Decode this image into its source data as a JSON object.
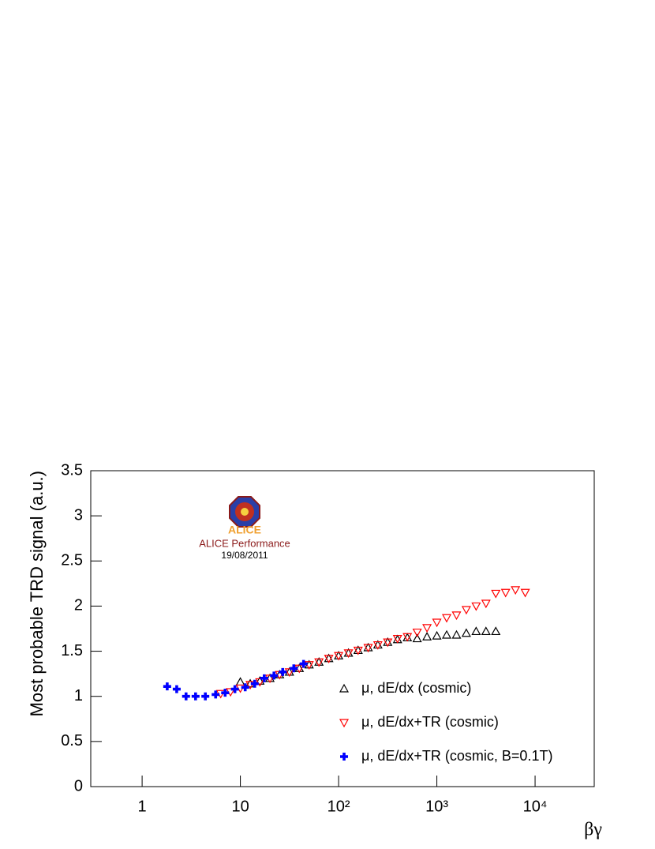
{
  "chart_data": {
    "type": "scatter",
    "x_label": "βγ",
    "y_label": "Most probable TRD signal (a.u.)",
    "xlog": true,
    "xlim": [
      0.3,
      40000
    ],
    "ylim": [
      0,
      3.5
    ],
    "xticks": [
      1,
      10,
      {
        "value": 100,
        "label": "10²"
      },
      {
        "value": 1000,
        "label": "10³"
      },
      {
        "value": 10000,
        "label": "10⁴"
      }
    ],
    "yticks": [
      0,
      0.5,
      1,
      1.5,
      2,
      2.5,
      3,
      3.5
    ],
    "legend": "bottom-right",
    "logo": {
      "name": "ALICE",
      "label": "ALICE Performance",
      "date": "19/08/2011"
    },
    "series": [
      {
        "name": "μ, dE/dx (cosmic)",
        "color": "#000000",
        "marker": "triangle-up",
        "x": [
          10,
          12.6,
          15.8,
          20,
          25.1,
          31.6,
          39.8,
          50.1,
          63.1,
          79.4,
          100,
          126,
          158,
          200,
          251,
          316,
          398,
          501,
          631,
          794,
          1000,
          1259,
          1585,
          1995,
          2512,
          3162,
          3981
        ],
        "values": [
          1.16,
          1.14,
          1.17,
          1.2,
          1.24,
          1.27,
          1.31,
          1.35,
          1.38,
          1.42,
          1.45,
          1.48,
          1.51,
          1.54,
          1.57,
          1.6,
          1.63,
          1.65,
          1.64,
          1.66,
          1.67,
          1.68,
          1.68,
          1.7,
          1.72,
          1.72,
          1.72
        ]
      },
      {
        "name": "μ, dE/dx+TR (cosmic)",
        "color": "#ff0000",
        "marker": "triangle-down",
        "x": [
          6.31,
          7.94,
          10,
          12.6,
          15.8,
          20,
          25.1,
          31.6,
          39.8,
          50.1,
          63.1,
          79.4,
          100,
          126,
          158,
          200,
          251,
          316,
          398,
          501,
          631,
          794,
          1000,
          1259,
          1585,
          1995,
          2512,
          3162,
          3981,
          5012,
          6310,
          7943
        ],
        "values": [
          1.03,
          1.05,
          1.09,
          1.13,
          1.16,
          1.2,
          1.24,
          1.27,
          1.31,
          1.35,
          1.38,
          1.42,
          1.45,
          1.48,
          1.51,
          1.54,
          1.57,
          1.6,
          1.64,
          1.66,
          1.71,
          1.76,
          1.82,
          1.87,
          1.9,
          1.96,
          2.0,
          2.03,
          2.14,
          2.15,
          2.18,
          2.15
        ]
      },
      {
        "name": "μ, dE/dx+TR (cosmic, B=0.1T)",
        "color": "#0000ff",
        "marker": "cross",
        "x": [
          1.8,
          2.25,
          2.8,
          3.5,
          4.4,
          5.6,
          7.0,
          8.8,
          11.2,
          14,
          17.5,
          22,
          27,
          35,
          44
        ],
        "values": [
          1.11,
          1.08,
          1.0,
          1.0,
          1.0,
          1.02,
          1.04,
          1.08,
          1.1,
          1.14,
          1.2,
          1.23,
          1.27,
          1.31,
          1.36
        ]
      }
    ]
  }
}
